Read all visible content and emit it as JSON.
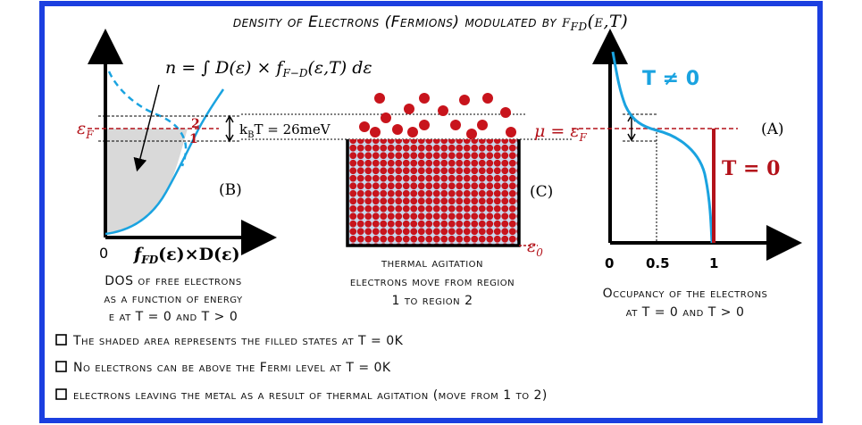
{
  "title": {
    "prefix": "density of Electrons (Fermions) modulated by ",
    "f": "f",
    "sub": "FD",
    "args": "(ε,T)"
  },
  "panel_b": {
    "formula_n": "n = ∫ D(ε) × f",
    "formula_sub": "F−D",
    "formula_tail": "(ε,T) dε",
    "eps_f": "ε",
    "eps_f_sub": "F",
    "label_2": "2",
    "label_1": "1",
    "kbt": "k",
    "kbt_sub": "B",
    "kbt_tail": "T = 26meV",
    "letter": "(B)",
    "origin": "0",
    "axis_label": "f",
    "axis_label_sub": "FD",
    "axis_label_tail": "(ε)×D(ε)",
    "caption": [
      "DOS of free electrons",
      "as a function of energy",
      "ε at T = 0 and T > 0"
    ]
  },
  "panel_c": {
    "letter": "(C)",
    "eps0": "ε",
    "eps0_sub": "0",
    "caption": [
      "thermal agitation",
      "electrons move from region",
      "1 to region 2"
    ]
  },
  "panel_a": {
    "t_neq": "T ≠ 0",
    "mu": "μ = ε",
    "mu_sub": "F",
    "letter": "(A)",
    "t_zero": "T = 0",
    "ticks": [
      "0",
      "0.5",
      "1"
    ],
    "caption": [
      "Occupancy of the electrons",
      "at T = 0 and T > 0"
    ]
  },
  "bullets": [
    "The shaded area represents the filled states at T = 0K",
    "No electrons can be above the Fermi level at T = 0K",
    "electrons leaving the metal as a result of thermal agitation (move from 1 to 2)"
  ],
  "colors": {
    "frame": "#1b3fe0",
    "accent_red": "#b3121a",
    "curve_blue": "#1aa3e0",
    "shade": "#d9d9d9"
  }
}
